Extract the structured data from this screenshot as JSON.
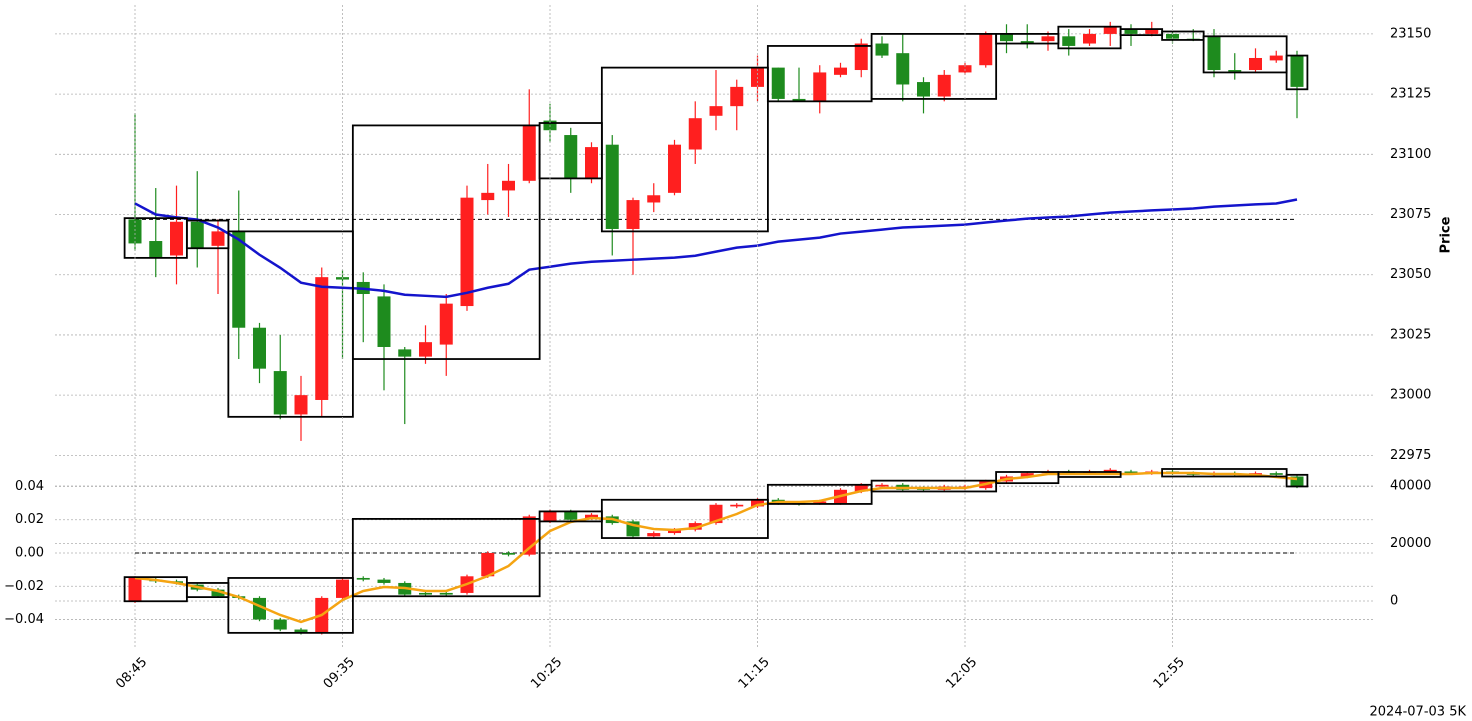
{
  "chart_data": [
    {
      "type": "candlestick",
      "ylabel": "Price",
      "ylim": [
        22971,
        23162
      ],
      "yticks": [
        22975,
        23000,
        23025,
        23050,
        23075,
        23100,
        23125,
        23150
      ],
      "grid": true,
      "up_color": "#ff1f1f",
      "down_color": "#1e8b1e",
      "open": [
        23073,
        23064,
        23058,
        23072,
        23062,
        23068,
        23028,
        23010,
        22992,
        22998,
        23049,
        23047,
        23041,
        23019,
        23016,
        23021,
        23037,
        23081,
        23085,
        23089,
        23114,
        23108,
        23090,
        23104,
        23069,
        23080,
        23084,
        23102,
        23116,
        23120,
        23128,
        23136,
        23123,
        23122,
        23133,
        23135,
        23146,
        23142,
        23130,
        23124,
        23134,
        23137,
        23150,
        23147,
        23147,
        23149,
        23146,
        23150,
        23152,
        23150,
        23150,
        23148,
        23149,
        23135,
        23135,
        23139,
        23141
      ],
      "high": [
        23117,
        23086,
        23087,
        23093,
        23073,
        23085,
        23030,
        23025,
        23008,
        23053,
        23052,
        23051,
        23046,
        23020,
        23029,
        23042,
        23087,
        23096,
        23096,
        23127,
        23121,
        23111,
        23105,
        23108,
        23082,
        23088,
        23106,
        23122,
        23135,
        23131,
        23141,
        23136,
        23136,
        23137,
        23138,
        23148,
        23149,
        23150,
        23132,
        23135,
        23138,
        23151,
        23154,
        23154,
        23151,
        23152,
        23152,
        23155,
        23154,
        23155,
        23151,
        23152,
        23152,
        23142,
        23144,
        23143,
        23143
      ],
      "low": [
        23060,
        23049,
        23046,
        23053,
        23042,
        23015,
        23005,
        22990,
        22981,
        22991,
        23015,
        23022,
        23002,
        22988,
        23013,
        23008,
        23035,
        23075,
        23074,
        23088,
        23105,
        23084,
        23088,
        23058,
        23050,
        23076,
        23083,
        23096,
        23110,
        23110,
        23122,
        23122,
        23122,
        23117,
        23132,
        23132,
        23140,
        23122,
        23117,
        23122,
        23133,
        23136,
        23142,
        23144,
        23143,
        23141,
        23145,
        23145,
        23145,
        23149,
        23146,
        23147,
        23132,
        23131,
        23134,
        23138,
        23115
      ],
      "close": [
        23063,
        23057,
        23072,
        23061,
        23068,
        23028,
        23011,
        22992,
        23000,
        23049,
        23048,
        23042,
        23020,
        23016,
        23022,
        23038,
        23082,
        23084,
        23089,
        23112,
        23110,
        23090,
        23103,
        23069,
        23081,
        23083,
        23104,
        23115,
        23120,
        23128,
        23136,
        23123,
        23122,
        23134,
        23136,
        23146,
        23141,
        23129,
        23124,
        23133,
        23137,
        23150,
        23147,
        23146,
        23149,
        23145,
        23150,
        23153,
        23150,
        23152,
        23148,
        23147.5,
        23135,
        23134.5,
        23140,
        23141,
        23128
      ],
      "lines": [
        {
          "color": "#1414cc",
          "values": [
            23079.6,
            23075,
            23073.8,
            23072.9,
            23069.6,
            23064.6,
            23058.3,
            23052.9,
            23046.7,
            23045,
            23044.6,
            23044.2,
            23043.3,
            23041.7,
            23041.25,
            23040.8,
            23042.5,
            23044.6,
            23046.25,
            23052.1,
            23053.3,
            23054.6,
            23055.4,
            23055.8,
            23056.25,
            23056.7,
            23057.1,
            23057.9,
            23059.6,
            23061.25,
            23062.1,
            23063.75,
            23064.6,
            23065.4,
            23067.1,
            23067.9,
            23068.75,
            23069.6,
            23070,
            23070.4,
            23070.8,
            23071.7,
            23072.5,
            23073.3,
            23073.75,
            23074.2,
            23075,
            23075.8,
            23076.25,
            23076.7,
            23077.1,
            23077.5,
            23078.3,
            23078.75,
            23079.2,
            23079.6,
            23081.25
          ]
        }
      ],
      "hlines": [
        {
          "value": 23073,
          "style": "dashed"
        }
      ],
      "boxes": [
        {
          "start": 0,
          "end": 2,
          "low": 23057,
          "high": 23073.5
        },
        {
          "start": 3,
          "end": 4,
          "low": 23061,
          "high": 23072.5
        },
        {
          "start": 5,
          "end": 10,
          "low": 22991,
          "high": 23068
        },
        {
          "start": 11,
          "end": 19,
          "low": 23015,
          "high": 23112
        },
        {
          "start": 20,
          "end": 22,
          "low": 23090,
          "high": 23113
        },
        {
          "start": 23,
          "end": 30,
          "low": 23068,
          "high": 23136
        },
        {
          "start": 31,
          "end": 35,
          "low": 23122,
          "high": 23145
        },
        {
          "start": 36,
          "end": 41,
          "low": 23123,
          "high": 23150
        },
        {
          "start": 42,
          "end": 44,
          "low": 23146,
          "high": 23150
        },
        {
          "start": 45,
          "end": 47,
          "low": 23144,
          "high": 23153
        },
        {
          "start": 48,
          "end": 49,
          "low": 23149.5,
          "high": 23152
        },
        {
          "start": 50,
          "end": 51,
          "low": 23147.5,
          "high": 23151
        },
        {
          "start": 52,
          "end": 55,
          "low": 23134,
          "high": 23149
        },
        {
          "start": 56,
          "end": 56,
          "low": 23127,
          "high": 23141
        }
      ]
    },
    {
      "type": "candlestick",
      "annotation": "2024-07-03 5K",
      "categories": [
        "08:45",
        null,
        null,
        null,
        null,
        null,
        null,
        null,
        null,
        null,
        "09:35",
        null,
        null,
        null,
        null,
        null,
        null,
        null,
        null,
        null,
        "10:25",
        null,
        null,
        null,
        null,
        null,
        null,
        null,
        null,
        null,
        "11:15",
        null,
        null,
        null,
        null,
        null,
        null,
        null,
        null,
        null,
        "12:05",
        null,
        null,
        null,
        null,
        null,
        null,
        null,
        null,
        null,
        "12:55",
        null,
        null,
        null,
        null,
        null,
        null
      ],
      "ylim": [
        -0.0571,
        0.0511
      ],
      "yticks": [
        {
          "value": -0.04,
          "label": "−0.04"
        },
        {
          "value": -0.02,
          "label": "−0.02"
        },
        {
          "value": 0,
          "label": "0.00"
        },
        0.02,
        0.04
      ],
      "y2lim": [
        -16350,
        46260
      ],
      "y2ticks": [
        0,
        20000,
        40000
      ],
      "grid": true,
      "up_color": "#ff1f1f",
      "down_color": "#1e8b1e",
      "open": [
        -0.029,
        -0.016,
        -0.017,
        -0.019,
        -0.022,
        -0.026,
        -0.027,
        -0.04,
        -0.046,
        -0.048,
        -0.027,
        -0.015,
        -0.016,
        -0.018,
        -0.024,
        -0.024,
        -0.024,
        -0.014,
        0.0,
        -0.001,
        0.019,
        0.025,
        0.021,
        0.022,
        0.019,
        0.01,
        0.012,
        0.014,
        0.018,
        0.028,
        0.028,
        0.032,
        0.03,
        0.03,
        0.03,
        0.037,
        0.04,
        0.041,
        0.039,
        0.038,
        0.039,
        0.039,
        0.043,
        0.046,
        0.048,
        0.049,
        0.048,
        0.049,
        0.049,
        0.048,
        0.049,
        0.048,
        0.047,
        0.048,
        0.047,
        0.048,
        0.046
      ],
      "high": [
        -0.014,
        -0.015,
        -0.016,
        -0.018,
        -0.021,
        -0.025,
        -0.026,
        -0.039,
        -0.045,
        -0.026,
        -0.015,
        -0.014,
        -0.015,
        -0.017,
        -0.023,
        -0.023,
        -0.013,
        0.001,
        0.001,
        0.023,
        0.026,
        0.026,
        0.024,
        0.023,
        0.02,
        0.013,
        0.015,
        0.019,
        0.03,
        0.03,
        0.033,
        0.033,
        0.031,
        0.032,
        0.039,
        0.042,
        0.042,
        0.042,
        0.04,
        0.041,
        0.041,
        0.044,
        0.047,
        0.049,
        0.05,
        0.05,
        0.05,
        0.051,
        0.05,
        0.05,
        0.05,
        0.049,
        0.049,
        0.049,
        0.049,
        0.049,
        0.047
      ],
      "low": [
        -0.03,
        -0.018,
        -0.019,
        -0.023,
        -0.027,
        -0.028,
        -0.041,
        -0.047,
        -0.049,
        -0.049,
        -0.028,
        -0.017,
        -0.019,
        -0.026,
        -0.026,
        -0.026,
        -0.025,
        -0.015,
        -0.002,
        -0.002,
        0.018,
        0.019,
        0.02,
        0.017,
        0.009,
        0.009,
        0.011,
        0.013,
        0.017,
        0.027,
        0.027,
        0.029,
        0.0285,
        0.029,
        0.029,
        0.036,
        0.039,
        0.037,
        0.037,
        0.037,
        0.038,
        0.038,
        0.042,
        0.045,
        0.047,
        0.047,
        0.047,
        0.048,
        0.047,
        0.047,
        0.047,
        0.046,
        0.046,
        0.046,
        0.046,
        0.046,
        0.039
      ],
      "close": [
        -0.015,
        -0.017,
        -0.018,
        -0.022,
        -0.026,
        -0.027,
        -0.04,
        -0.046,
        -0.048,
        -0.027,
        -0.016,
        -0.016,
        -0.018,
        -0.025,
        -0.025,
        -0.025,
        -0.014,
        0.0,
        -0.001,
        0.022,
        0.025,
        0.02,
        0.023,
        0.018,
        0.01,
        0.012,
        0.014,
        0.018,
        0.029,
        0.029,
        0.032,
        0.03,
        0.0295,
        0.031,
        0.038,
        0.041,
        0.041,
        0.038,
        0.038,
        0.04,
        0.04,
        0.043,
        0.046,
        0.048,
        0.049,
        0.048,
        0.049,
        0.05,
        0.048,
        0.049,
        0.048,
        0.047,
        0.048,
        0.047,
        0.048,
        0.047,
        0.04
      ],
      "lines": [
        {
          "color": "#f5a412",
          "axis": "y2",
          "values": [
            8000,
            7300,
            6260,
            4870,
            3480,
            1390,
            -1740,
            -4870,
            -7300,
            -4870,
            350,
            3480,
            4870,
            4520,
            3480,
            3480,
            5910,
            8700,
            12170,
            18430,
            24350,
            27480,
            28870,
            28520,
            26430,
            25040,
            24690,
            25390,
            27820,
            30260,
            33390,
            34430,
            34430,
            34780,
            36520,
            38260,
            39300,
            39300,
            39300,
            39300,
            39300,
            40690,
            42430,
            43130,
            44170,
            44170,
            44170,
            44170,
            44170,
            44520,
            44520,
            44520,
            44170,
            44170,
            43820,
            43130,
            42430
          ]
        }
      ],
      "hlines": [
        {
          "value": 0,
          "style": "dashed"
        }
      ],
      "boxes": [
        {
          "start": 0,
          "end": 2,
          "low": -0.029,
          "high": -0.0145
        },
        {
          "start": 3,
          "end": 4,
          "low": -0.0265,
          "high": -0.018
        },
        {
          "start": 5,
          "end": 10,
          "low": -0.048,
          "high": -0.015
        },
        {
          "start": 11,
          "end": 19,
          "low": -0.026,
          "high": 0.0205
        },
        {
          "start": 20,
          "end": 22,
          "low": 0.019,
          "high": 0.025
        },
        {
          "start": 23,
          "end": 30,
          "low": 0.009,
          "high": 0.032
        },
        {
          "start": 31,
          "end": 35,
          "low": 0.0295,
          "high": 0.041
        },
        {
          "start": 36,
          "end": 41,
          "low": 0.037,
          "high": 0.0435
        },
        {
          "start": 42,
          "end": 44,
          "low": 0.042,
          "high": 0.0487
        },
        {
          "start": 45,
          "end": 47,
          "low": 0.0457,
          "high": 0.0487
        },
        {
          "start": 50,
          "end": 55,
          "low": 0.046,
          "high": 0.0505
        },
        {
          "start": 56,
          "end": 56,
          "low": 0.04,
          "high": 0.047
        }
      ]
    }
  ]
}
